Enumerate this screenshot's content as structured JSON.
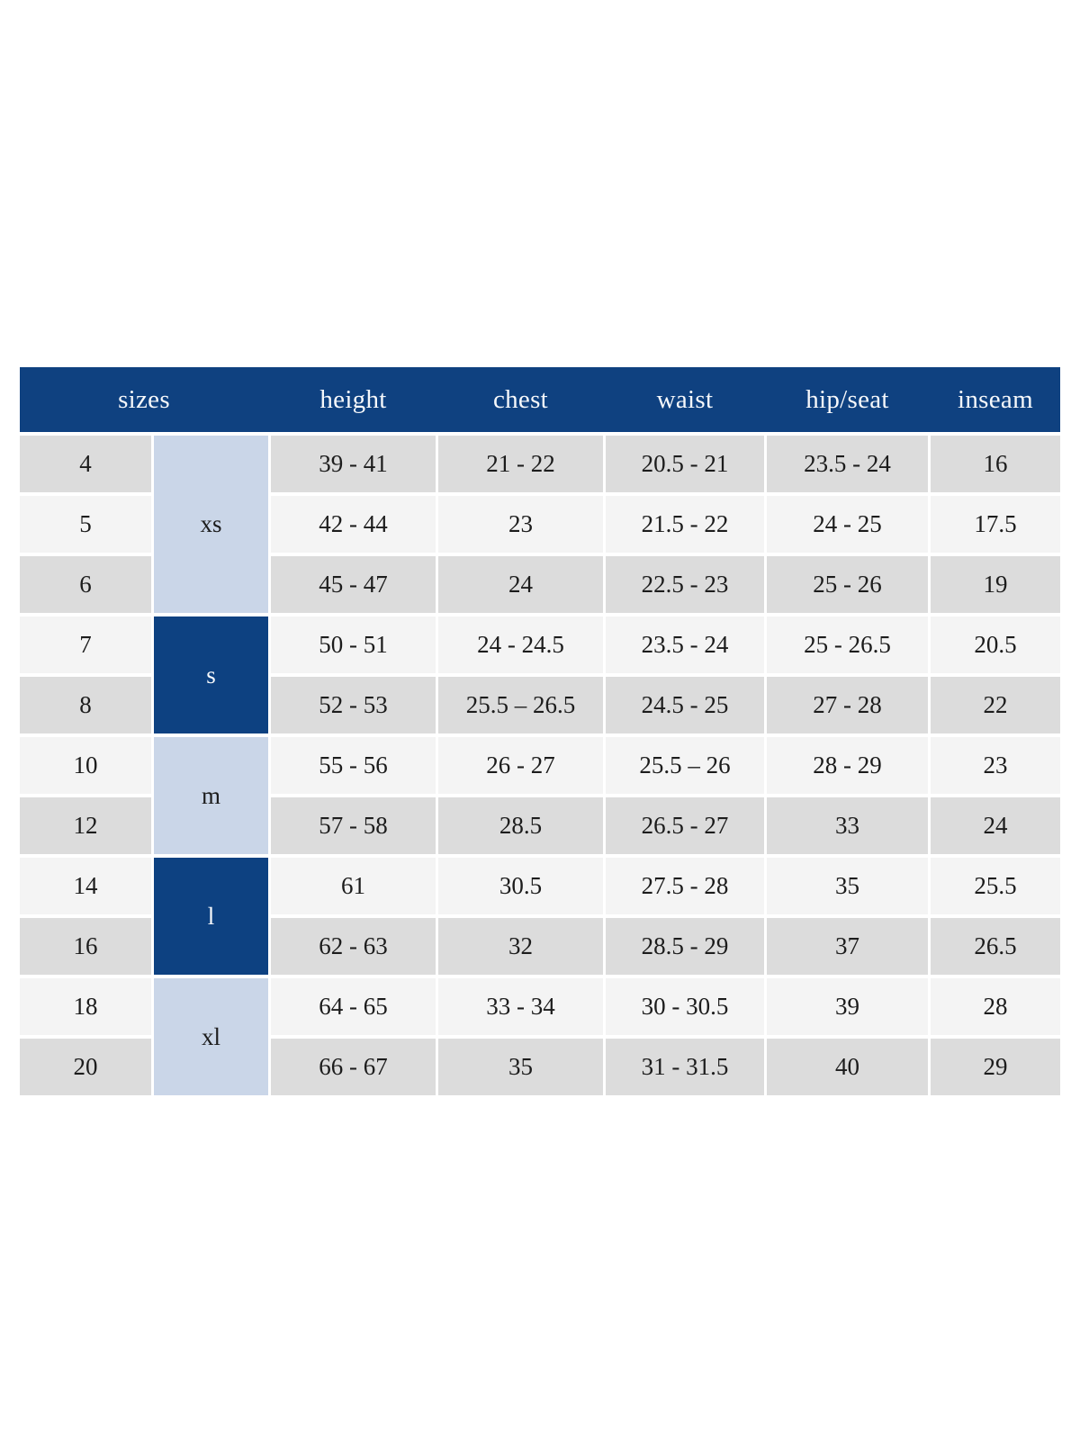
{
  "colors": {
    "header_bg": "#0F4180",
    "header_text": "#F6F8FB",
    "group_dark_bg": "#0D4181",
    "group_light_bg": "#CAD6E8",
    "row_even_bg": "#DCDCDC",
    "row_odd_bg": "#F4F4F4",
    "cell_text": "#1C1C1C"
  },
  "size_chart": {
    "headers": [
      {
        "id": "sizes",
        "label": "sizes"
      },
      {
        "id": "height",
        "label": "height"
      },
      {
        "id": "chest",
        "label": "chest"
      },
      {
        "id": "waist",
        "label": "waist"
      },
      {
        "id": "hip_seat",
        "label": "hip/seat"
      },
      {
        "id": "inseam",
        "label": "inseam"
      }
    ],
    "groups": [
      {
        "label": "xs",
        "rows": 3,
        "style": "light"
      },
      {
        "label": "s",
        "rows": 2,
        "style": "dark"
      },
      {
        "label": "m",
        "rows": 2,
        "style": "light"
      },
      {
        "label": "l",
        "rows": 2,
        "style": "dark"
      },
      {
        "label": "xl",
        "rows": 2,
        "style": "light"
      }
    ],
    "rows": [
      {
        "size": "4",
        "height": "39 - 41",
        "chest": "21 - 22",
        "waist": "20.5 - 21",
        "hip_seat": "23.5 - 24",
        "inseam": "16"
      },
      {
        "size": "5",
        "height": "42 - 44",
        "chest": "23",
        "waist": "21.5 - 22",
        "hip_seat": "24 - 25",
        "inseam": "17.5"
      },
      {
        "size": "6",
        "height": "45 - 47",
        "chest": "24",
        "waist": "22.5 - 23",
        "hip_seat": "25 - 26",
        "inseam": "19"
      },
      {
        "size": "7",
        "height": "50 - 51",
        "chest": "24 - 24.5",
        "waist": "23.5 - 24",
        "hip_seat": "25 - 26.5",
        "inseam": "20.5"
      },
      {
        "size": "8",
        "height": "52 - 53",
        "chest": "25.5 – 26.5",
        "waist": "24.5 - 25",
        "hip_seat": "27 - 28",
        "inseam": "22"
      },
      {
        "size": "10",
        "height": "55 - 56",
        "chest": "26 - 27",
        "waist": "25.5 – 26",
        "hip_seat": "28 - 29",
        "inseam": "23"
      },
      {
        "size": "12",
        "height": "57 - 58",
        "chest": "28.5",
        "waist": "26.5 - 27",
        "hip_seat": "33",
        "inseam": "24"
      },
      {
        "size": "14",
        "height": "61",
        "chest": "30.5",
        "waist": "27.5 - 28",
        "hip_seat": "35",
        "inseam": "25.5"
      },
      {
        "size": "16",
        "height": "62 - 63",
        "chest": "32",
        "waist": "28.5 - 29",
        "hip_seat": "37",
        "inseam": "26.5"
      },
      {
        "size": "18",
        "height": "64 - 65",
        "chest": "33 - 34",
        "waist": "30 - 30.5",
        "hip_seat": "39",
        "inseam": "28"
      },
      {
        "size": "20",
        "height": "66 - 67",
        "chest": "35",
        "waist": "31 - 31.5",
        "hip_seat": "40",
        "inseam": "29"
      }
    ]
  }
}
